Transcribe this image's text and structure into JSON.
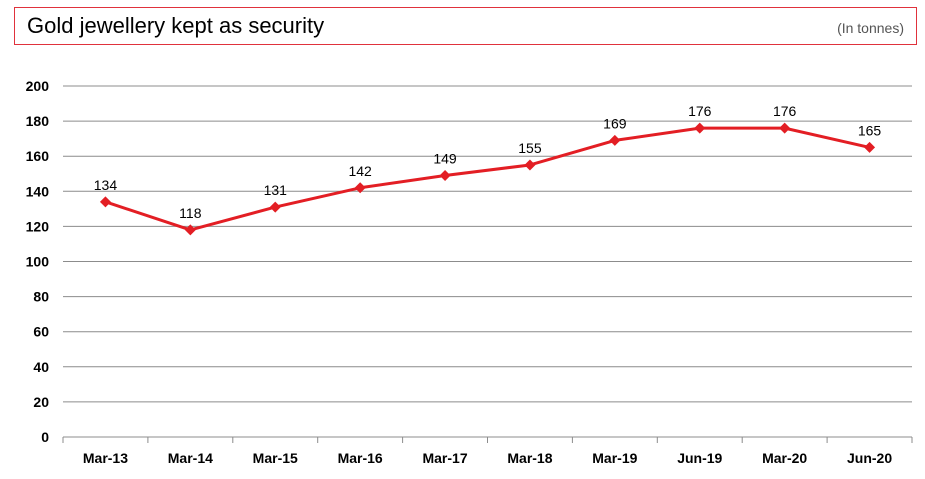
{
  "header": {
    "title": "Gold jewellery kept as security",
    "unit": "(In tonnes)"
  },
  "chart_data": {
    "type": "line",
    "title": "Gold jewellery kept as security",
    "subtitle": "(In tonnes)",
    "xlabel": "",
    "ylabel": "",
    "categories": [
      "Mar-13",
      "Mar-14",
      "Mar-15",
      "Mar-16",
      "Mar-17",
      "Mar-18",
      "Mar-19",
      "Jun-19",
      "Mar-20",
      "Jun-20"
    ],
    "series": [
      {
        "values": [
          134,
          118,
          131,
          142,
          149,
          155,
          169,
          176,
          176,
          165
        ],
        "color": "#e31e24"
      }
    ],
    "ylim": [
      0,
      200
    ],
    "yticks": [
      0,
      20,
      40,
      60,
      80,
      100,
      120,
      140,
      160,
      180,
      200
    ],
    "grid": true,
    "legend": "none",
    "data_labels": true
  }
}
